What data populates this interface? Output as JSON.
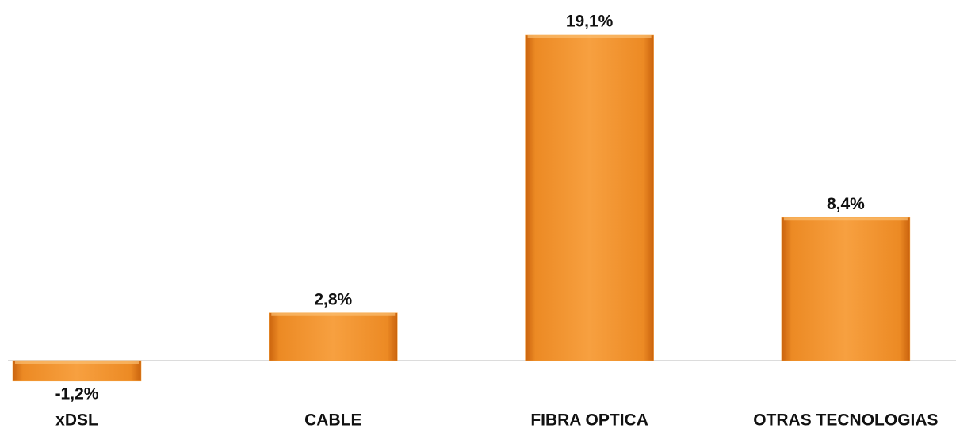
{
  "chart_data": {
    "type": "bar",
    "categories": [
      "xDSL",
      "CABLE",
      "FIBRA OPTICA",
      "OTRAS TECNOLOGIAS"
    ],
    "values": [
      -1.2,
      2.8,
      19.1,
      8.4
    ],
    "value_labels": [
      "-1,2%",
      "2,8%",
      "19,1%",
      "8,4%"
    ],
    "color": "#f59a2f"
  }
}
